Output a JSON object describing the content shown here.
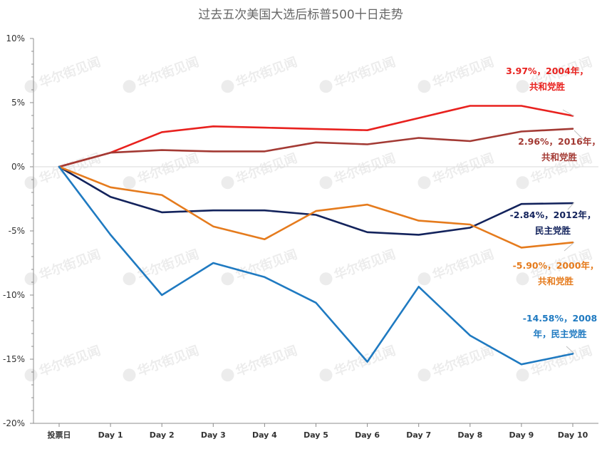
{
  "chart_data": {
    "type": "line",
    "title": "过去五次美国大选后标普500十日走势",
    "xlabel": "",
    "ylabel": "",
    "categories": [
      "投票日",
      "Day 1",
      "Day 2",
      "Day 3",
      "Day 4",
      "Day 5",
      "Day 6",
      "Day 7",
      "Day 8",
      "Day 9",
      "Day 10"
    ],
    "y_ticks": [
      "10%",
      "5%",
      "0%",
      "-5%",
      "-10%",
      "-15%",
      "-20%"
    ],
    "ylim": [
      -20,
      10
    ],
    "grid": false,
    "series": [
      {
        "name": "3.97%，2004年，共和党胜",
        "color": "#e8211e",
        "values": [
          0,
          1.1,
          2.7,
          3.15,
          3.05,
          2.95,
          2.85,
          3.8,
          4.75,
          4.75,
          3.97
        ],
        "label_lines": [
          "3.97%，2004年，",
          "共和党胜"
        ]
      },
      {
        "name": "2.96%，2016年，共和党胜",
        "color": "#a33a34",
        "values": [
          0,
          1.1,
          1.3,
          1.2,
          1.2,
          1.9,
          1.75,
          2.25,
          2.0,
          2.75,
          2.96
        ],
        "label_lines": [
          "2.96%，2016年，",
          "共和党胜"
        ]
      },
      {
        "name": "-2.84%，2012年，民主党胜",
        "color": "#13235c",
        "values": [
          0,
          -2.35,
          -3.55,
          -3.4,
          -3.4,
          -3.75,
          -5.1,
          -5.3,
          -4.75,
          -2.9,
          -2.84
        ],
        "label_lines": [
          "-2.84%，2012年，",
          "民主党胜"
        ]
      },
      {
        "name": "-5.90%，2000年，共和党胜",
        "color": "#e57b1d",
        "values": [
          0,
          -1.6,
          -2.2,
          -4.65,
          -5.65,
          -3.45,
          -2.95,
          -4.2,
          -4.5,
          -6.3,
          -5.9
        ],
        "label_lines": [
          "-5.90%，2000年，",
          "共和党胜"
        ]
      },
      {
        "name": "-14.58%，2008年，民主党胜",
        "color": "#1f7ac1",
        "values": [
          0,
          -5.3,
          -10.0,
          -7.5,
          -8.6,
          -10.6,
          -15.2,
          -9.35,
          -13.15,
          -15.4,
          -14.58
        ],
        "label_lines": [
          "-14.58%，2008",
          "年，民主党胜"
        ]
      }
    ],
    "watermark": "华尔街见闻"
  }
}
